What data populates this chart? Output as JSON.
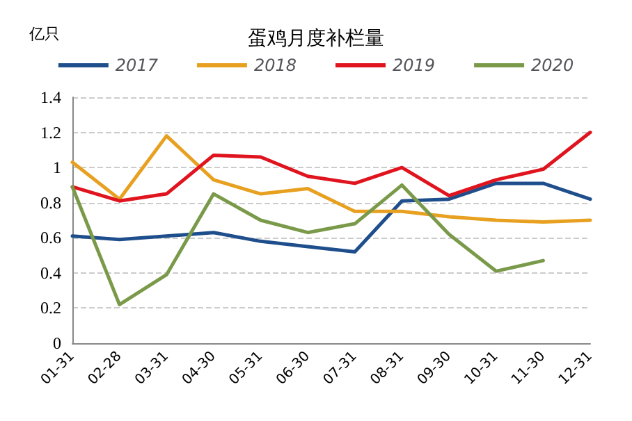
{
  "chart_data": {
    "type": "line",
    "title": "蛋鸡月度补栏量",
    "ylabel": "亿只",
    "categories": [
      "01-31",
      "02-28",
      "03-31",
      "04-30",
      "05-31",
      "06-30",
      "07-31",
      "08-31",
      "09-30",
      "10-31",
      "11-30",
      "12-31"
    ],
    "series": [
      {
        "name": "2017",
        "color": "#1f4e8c",
        "values": [
          0.61,
          0.59,
          0.61,
          0.63,
          0.58,
          0.55,
          0.52,
          0.81,
          0.82,
          0.91,
          0.91,
          0.82
        ]
      },
      {
        "name": "2018",
        "color": "#e8a020",
        "values": [
          1.03,
          0.82,
          1.18,
          0.93,
          0.85,
          0.88,
          0.75,
          0.75,
          0.72,
          0.7,
          0.69,
          0.7
        ]
      },
      {
        "name": "2019",
        "color": "#e0141e",
        "values": [
          0.89,
          0.81,
          0.85,
          1.07,
          1.06,
          0.95,
          0.91,
          1.0,
          0.84,
          0.93,
          0.99,
          1.2
        ]
      },
      {
        "name": "2020",
        "color": "#7a9a4a",
        "values": [
          0.89,
          0.22,
          0.39,
          0.85,
          0.7,
          0.63,
          0.68,
          0.9,
          0.62,
          0.41,
          0.47,
          null
        ]
      }
    ],
    "ylim": [
      0,
      1.4
    ],
    "yticks": [
      0,
      0.2,
      0.4,
      0.6,
      0.8,
      1,
      1.2,
      1.4
    ],
    "grid": "y",
    "legend": "top",
    "marker": "none",
    "line_style": "solid"
  }
}
